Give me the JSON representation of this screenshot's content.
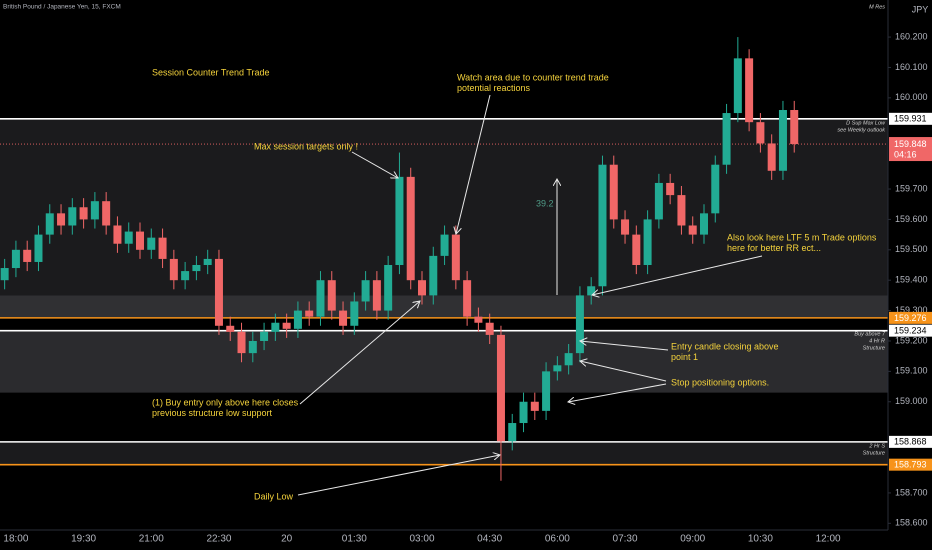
{
  "chart_data": {
    "type": "candlestick",
    "title": "British Pound / Japanese Yen, 15, FXCM",
    "currency": "JPY",
    "top_note": "M Res",
    "categories": [
      null,
      "18:00",
      null,
      null,
      null,
      null,
      null,
      "19:30",
      null,
      null,
      null,
      null,
      null,
      "21:00",
      null,
      null,
      null,
      null,
      null,
      "22:30",
      null,
      null,
      null,
      null,
      null,
      "20",
      null,
      null,
      null,
      null,
      null,
      "01:30",
      null,
      null,
      null,
      null,
      null,
      "03:00",
      null,
      null,
      null,
      null,
      null,
      "04:30",
      null,
      null,
      null,
      null,
      null,
      "06:00",
      null,
      null,
      null,
      null,
      null,
      "07:30",
      null,
      null,
      null,
      null,
      null,
      "09:00",
      null,
      null,
      null,
      null,
      null,
      "10:30",
      null,
      null,
      null,
      null,
      null,
      "12:00"
    ],
    "open": [
      159.4,
      159.44,
      159.5,
      159.46,
      159.55,
      159.62,
      159.58,
      159.64,
      159.6,
      159.66,
      159.58,
      159.52,
      159.56,
      159.5,
      159.54,
      159.47,
      159.4,
      159.43,
      159.45,
      159.47,
      159.25,
      159.23,
      159.16,
      159.2,
      159.23,
      159.26,
      159.24,
      159.3,
      159.28,
      159.4,
      159.3,
      159.25,
      159.33,
      159.4,
      159.3,
      159.45,
      159.74,
      159.4,
      159.35,
      159.48,
      159.55,
      159.4,
      159.28,
      159.26,
      159.22,
      158.87,
      158.93,
      159.0,
      158.97,
      159.1,
      159.12,
      159.16,
      159.35,
      159.38,
      159.78,
      159.6,
      159.55,
      159.45,
      159.6,
      159.72,
      159.68,
      159.58,
      159.55,
      159.62,
      159.78,
      159.95,
      160.13,
      159.92,
      159.85,
      159.76,
      159.96,
      null,
      null,
      null
    ],
    "high": [
      159.47,
      159.53,
      159.53,
      159.58,
      159.65,
      159.65,
      159.67,
      159.67,
      159.69,
      159.69,
      159.61,
      159.59,
      159.59,
      159.57,
      159.57,
      159.5,
      159.46,
      159.48,
      159.5,
      159.5,
      159.28,
      159.26,
      159.23,
      159.26,
      159.29,
      159.29,
      159.33,
      159.33,
      159.43,
      159.43,
      159.33,
      159.36,
      159.43,
      159.43,
      159.48,
      159.82,
      159.77,
      159.43,
      159.51,
      159.58,
      159.58,
      159.43,
      159.31,
      159.29,
      159.25,
      158.96,
      159.03,
      159.03,
      159.13,
      159.15,
      159.19,
      159.38,
      159.41,
      159.81,
      159.81,
      159.63,
      159.58,
      159.63,
      159.75,
      159.75,
      159.71,
      159.61,
      159.65,
      159.81,
      159.98,
      160.2,
      160.16,
      159.95,
      159.88,
      159.99,
      159.99,
      null,
      null,
      null
    ],
    "low": [
      159.37,
      159.41,
      159.43,
      159.43,
      159.52,
      159.55,
      159.55,
      159.57,
      159.57,
      159.55,
      159.49,
      159.49,
      159.47,
      159.47,
      159.44,
      159.37,
      159.37,
      159.4,
      159.42,
      159.22,
      159.2,
      159.13,
      159.13,
      159.17,
      159.2,
      159.21,
      159.21,
      159.25,
      159.25,
      159.27,
      159.22,
      159.22,
      159.3,
      159.27,
      159.27,
      159.42,
      159.37,
      159.32,
      159.32,
      159.45,
      159.37,
      159.25,
      159.23,
      159.19,
      158.74,
      158.84,
      158.9,
      158.94,
      158.94,
      159.07,
      159.09,
      159.13,
      159.32,
      159.35,
      159.57,
      159.52,
      159.42,
      159.42,
      159.57,
      159.65,
      159.55,
      159.52,
      159.52,
      159.59,
      159.75,
      159.92,
      159.89,
      159.82,
      159.73,
      159.73,
      159.82,
      null,
      null,
      null
    ],
    "close": [
      159.44,
      159.5,
      159.46,
      159.55,
      159.62,
      159.58,
      159.64,
      159.6,
      159.66,
      159.58,
      159.52,
      159.56,
      159.5,
      159.54,
      159.47,
      159.4,
      159.43,
      159.45,
      159.47,
      159.25,
      159.23,
      159.16,
      159.2,
      159.23,
      159.26,
      159.24,
      159.3,
      159.28,
      159.4,
      159.3,
      159.25,
      159.33,
      159.4,
      159.3,
      159.45,
      159.74,
      159.4,
      159.35,
      159.48,
      159.55,
      159.4,
      159.28,
      159.26,
      159.22,
      158.87,
      158.93,
      159.0,
      158.97,
      159.1,
      159.12,
      159.16,
      159.35,
      159.38,
      159.78,
      159.6,
      159.55,
      159.45,
      159.6,
      159.72,
      159.68,
      159.58,
      159.55,
      159.62,
      159.78,
      159.95,
      160.13,
      159.92,
      159.85,
      159.76,
      159.96,
      159.848,
      null,
      null,
      null
    ],
    "up_color": "#22ab94",
    "down_color": "#f06767",
    "ylim": [
      158.578,
      160.322
    ],
    "yticks": [
      {
        "value": 160.2,
        "label": "160.200"
      },
      {
        "value": 160.1,
        "label": "160.100"
      },
      {
        "value": 160.0,
        "label": "160.000"
      },
      {
        "value": 159.7,
        "label": "159.700"
      },
      {
        "value": 159.6,
        "label": "159.600"
      },
      {
        "value": 159.5,
        "label": "159.500"
      },
      {
        "value": 159.4,
        "label": "159.400"
      },
      {
        "value": 159.3,
        "label": "159.300"
      },
      {
        "value": 159.2,
        "label": "159.200"
      },
      {
        "value": 159.1,
        "label": "159.100"
      },
      {
        "value": 159.0,
        "label": "159.000"
      },
      {
        "value": 158.7,
        "label": "158.700"
      },
      {
        "value": 158.6,
        "label": "158.600"
      }
    ],
    "zones": [
      {
        "from": 159.35,
        "to": 159.931,
        "color": "#1b1b1d"
      },
      {
        "from": 159.276,
        "to": 159.35,
        "color": "#303033"
      },
      {
        "from": 159.03,
        "to": 159.234,
        "color": "#2b2b2e"
      },
      {
        "from": 158.793,
        "to": 158.868,
        "color": "#1b1b1d"
      }
    ],
    "levels": [
      {
        "value": 159.931,
        "color": "#ffffff",
        "text_color": "#000000"
      },
      {
        "value": 159.276,
        "color": "#f7931a",
        "text_color": "#ffffff"
      },
      {
        "value": 159.234,
        "color": "#ffffff",
        "text_color": "#000000"
      },
      {
        "value": 158.868,
        "color": "#ffffff",
        "text_color": "#000000"
      },
      {
        "value": 158.793,
        "color": "#f7931a",
        "text_color": "#ffffff"
      }
    ],
    "current_price": {
      "value": 159.848,
      "countdown": "04:16",
      "color": "#f06767"
    },
    "measure": {
      "value": 39.2,
      "color": "#4f9a86"
    },
    "level_notes": [
      {
        "lines": [
          "D Sup Max Low",
          "see Weekly outlook"
        ]
      },
      {
        "lines": [
          "Buy above 7",
          "4 Hr R",
          "Structure"
        ]
      },
      {
        "lines": [
          "2 Hr S",
          "Structure"
        ]
      }
    ],
    "annotation_color": "#f5d33c",
    "annotations": [
      {
        "lines": [
          "Session Counter Trend Trade"
        ]
      },
      {
        "lines": [
          "Watch area due to counter trend trade",
          "potential reactions"
        ]
      },
      {
        "lines": [
          "Max session targets only !"
        ]
      },
      {
        "lines": [
          "Also look here LTF 5 m Trade options",
          "here for better RR ect..."
        ]
      },
      {
        "lines": [
          "Entry candle closing above",
          "point 1"
        ]
      },
      {
        "lines": [
          "Stop positioning options."
        ]
      },
      {
        "lines": [
          "(1) Buy entry only above here closes",
          "previous structure low support"
        ]
      },
      {
        "lines": [
          "Daily Low"
        ]
      }
    ]
  }
}
